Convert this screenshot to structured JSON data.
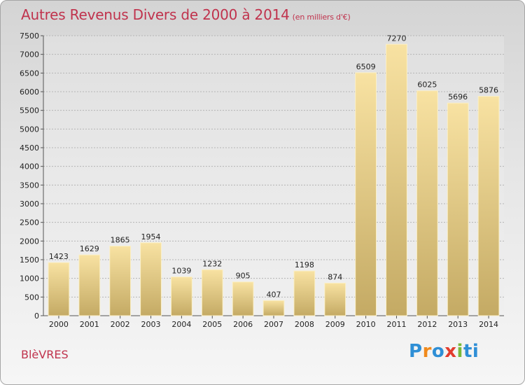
{
  "header": {
    "title": "Autres Revenus Divers de 2000 à 2014",
    "unit": "(en milliers d'€)"
  },
  "footer": {
    "town": "BlèVRES",
    "brand_letters": [
      "P",
      "r",
      "o",
      "x",
      "i",
      "ti"
    ]
  },
  "colors": {
    "title": "#c0334d",
    "bar_light": "#f8e2a2",
    "bar_dark": "#c4aa64",
    "grid": "#b4b4b4"
  },
  "chart_data": {
    "type": "bar",
    "title": "Autres Revenus Divers de 2000 à 2014",
    "subtitle": "(en milliers d'€)",
    "xlabel": "",
    "ylabel": "",
    "categories": [
      "2000",
      "2001",
      "2002",
      "2003",
      "2004",
      "2005",
      "2006",
      "2007",
      "2008",
      "2009",
      "2010",
      "2011",
      "2012",
      "2013",
      "2014"
    ],
    "values": [
      1423,
      1629,
      1865,
      1954,
      1039,
      1232,
      905,
      407,
      1198,
      874,
      6509,
      7270,
      6025,
      5696,
      5876
    ],
    "ylim": [
      0,
      7500
    ],
    "yticks": [
      0,
      500,
      1000,
      1500,
      2000,
      2500,
      3000,
      3500,
      4000,
      4500,
      5000,
      5500,
      6000,
      6500,
      7000,
      7500
    ],
    "grid": true,
    "legend": "none"
  }
}
